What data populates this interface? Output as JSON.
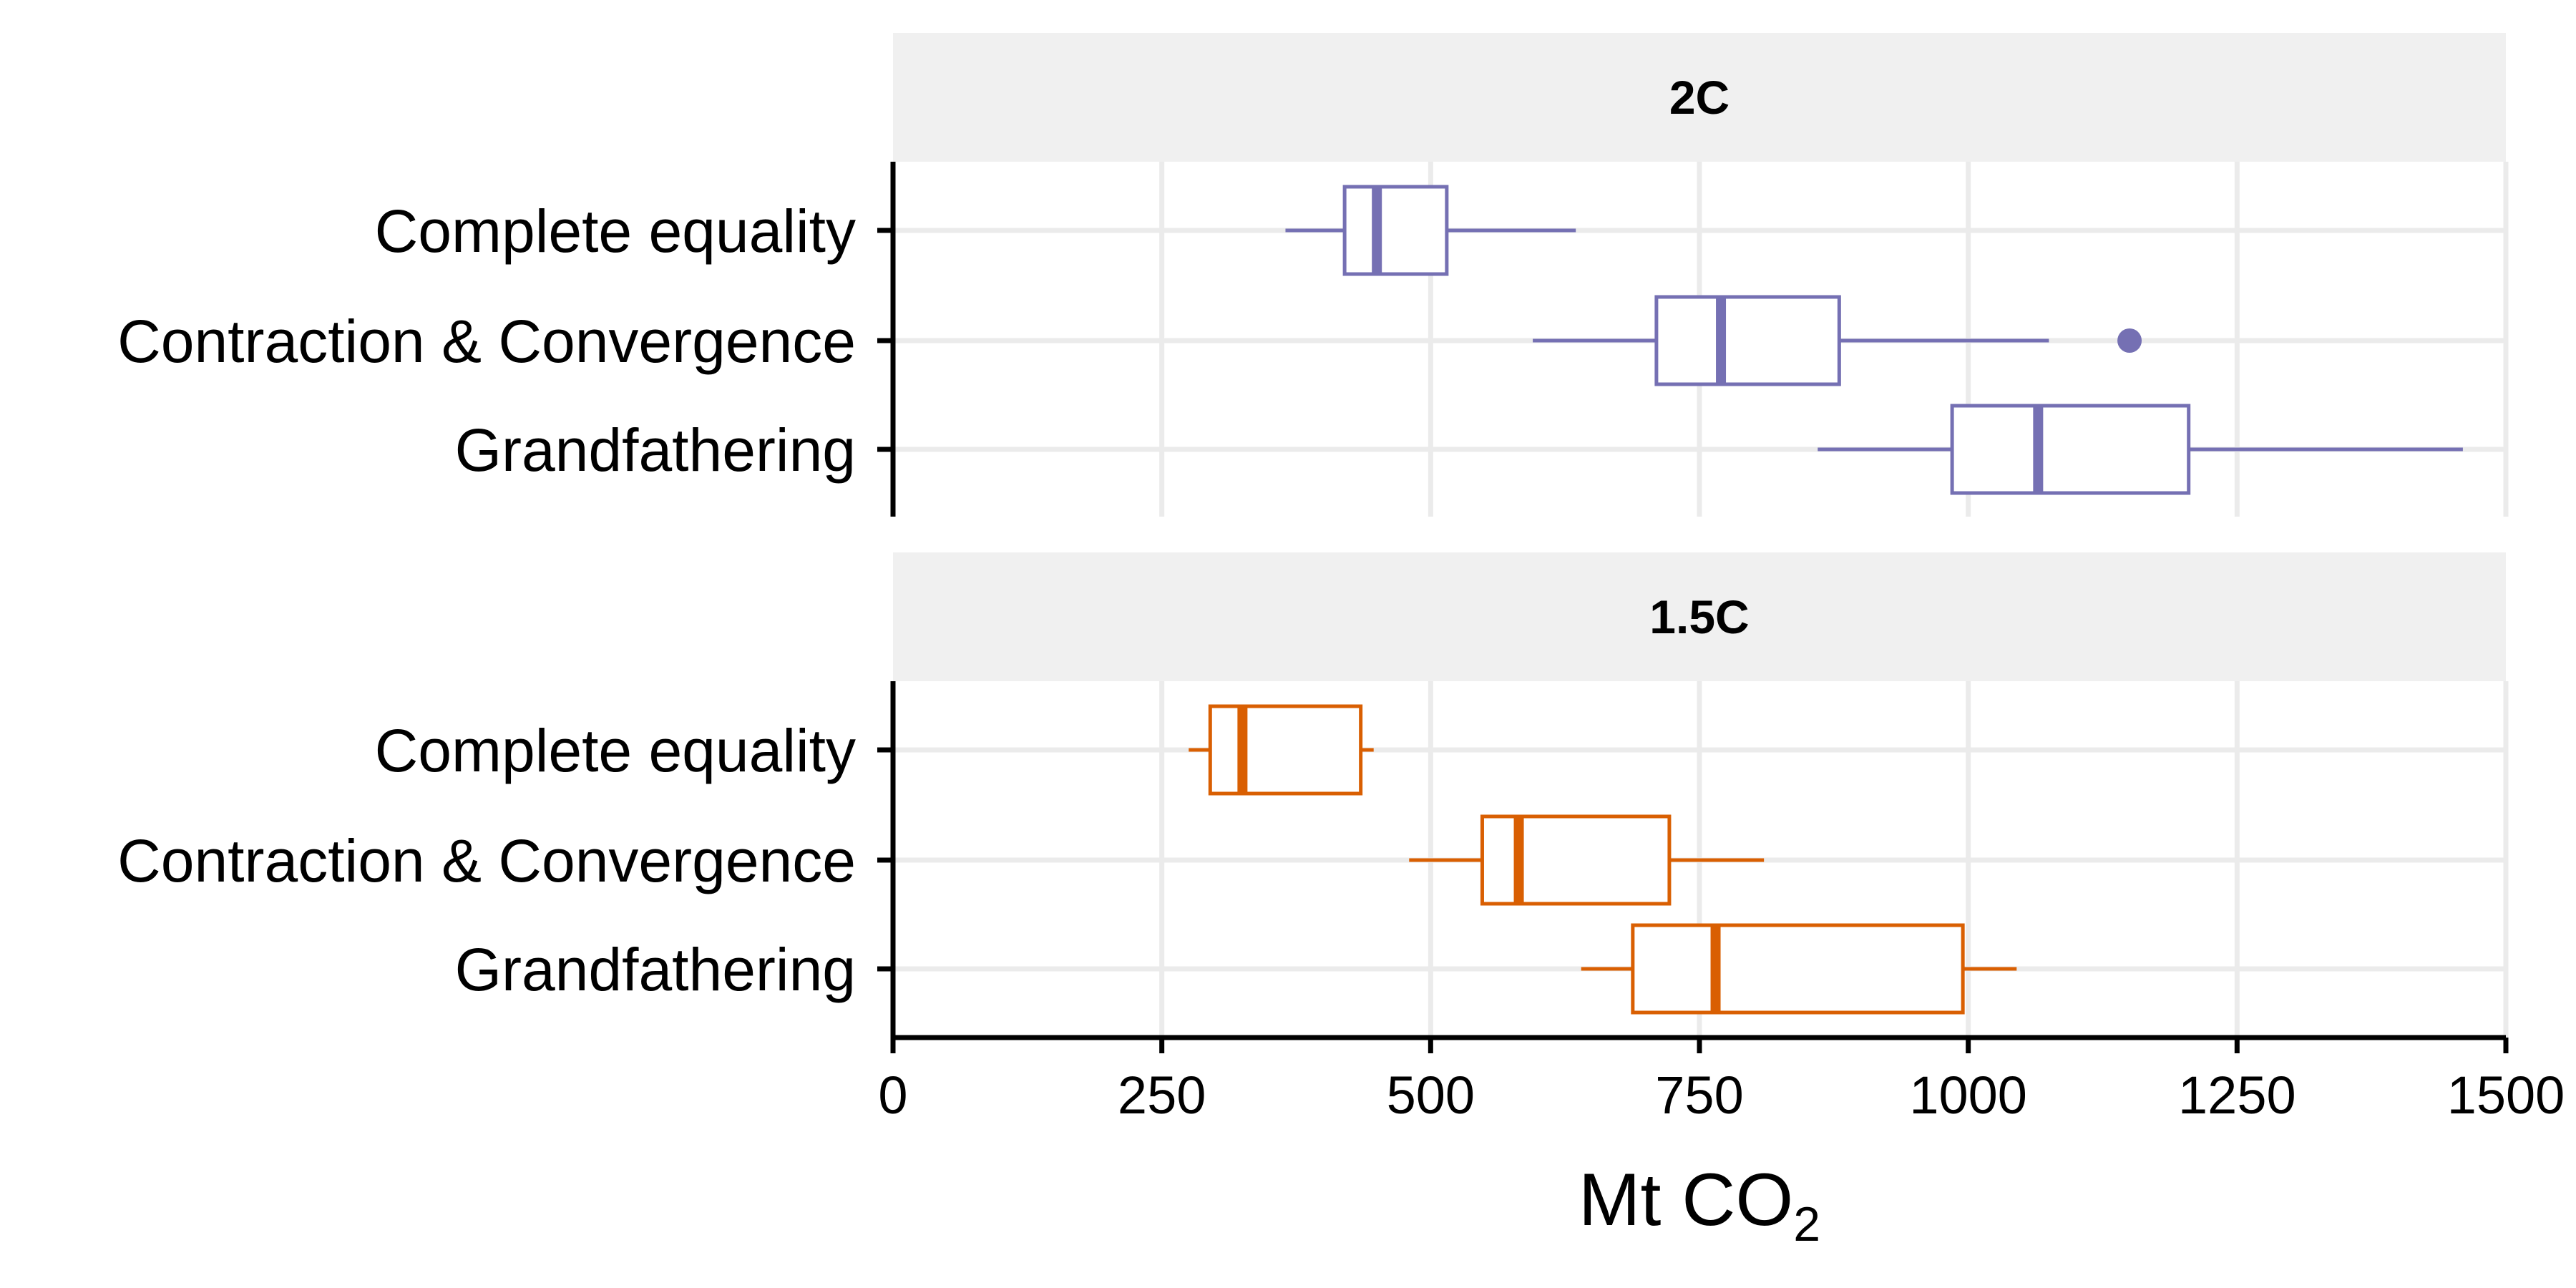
{
  "chart_data": {
    "type": "boxplot",
    "orientation": "horizontal",
    "xlabel": "Mt CO",
    "xlabel_subscript": "2",
    "xlim": [
      0,
      1500
    ],
    "xticks": [
      0,
      250,
      500,
      750,
      1000,
      1250,
      1500
    ],
    "grid": true,
    "categories": [
      "Complete equality",
      "Contraction & Convergence",
      "Grandfathering"
    ],
    "facets": [
      {
        "title": "2C",
        "color": "#7570b3",
        "boxes": [
          {
            "category": "Complete equality",
            "whisker_low": 365,
            "q1": 420,
            "median": 450,
            "q3": 515,
            "whisker_high": 635,
            "outliers": []
          },
          {
            "category": "Contraction & Convergence",
            "whisker_low": 595,
            "q1": 710,
            "median": 770,
            "q3": 880,
            "whisker_high": 1075,
            "outliers": [
              1150
            ]
          },
          {
            "category": "Grandfathering",
            "whisker_low": 860,
            "q1": 985,
            "median": 1065,
            "q3": 1205,
            "whisker_high": 1460,
            "outliers": []
          }
        ]
      },
      {
        "title": "1.5C",
        "color": "#d95f02",
        "boxes": [
          {
            "category": "Complete equality",
            "whisker_low": 275,
            "q1": 295,
            "median": 325,
            "q3": 435,
            "whisker_high": 447,
            "outliers": []
          },
          {
            "category": "Contraction & Convergence",
            "whisker_low": 480,
            "q1": 548,
            "median": 582,
            "q3": 722,
            "whisker_high": 810,
            "outliers": []
          },
          {
            "category": "Grandfathering",
            "whisker_low": 640,
            "q1": 688,
            "median": 765,
            "q3": 995,
            "whisker_high": 1045,
            "outliers": []
          }
        ]
      }
    ]
  }
}
